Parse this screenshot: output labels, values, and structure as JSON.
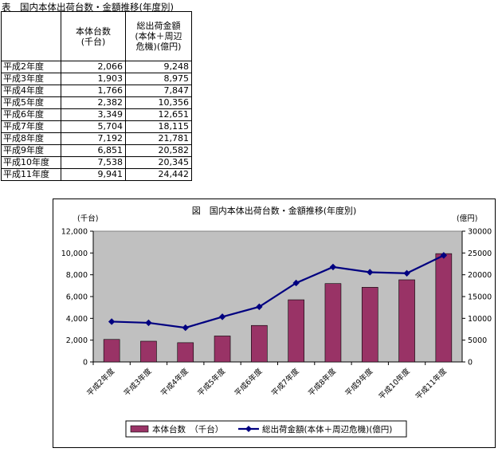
{
  "table": {
    "title": "表　国内本体出荷台数・金額推移(年度別)",
    "headers": [
      "",
      "本体台数\n(千台)",
      "総出荷金額\n(本体＋周辺\n危機)(億円)"
    ],
    "rows": [
      {
        "year": "平成2年度",
        "units": "2,066",
        "amount": "9,248"
      },
      {
        "year": "平成3年度",
        "units": "1,903",
        "amount": "8,975"
      },
      {
        "year": "平成4年度",
        "units": "1,766",
        "amount": "7,847"
      },
      {
        "year": "平成5年度",
        "units": "2,382",
        "amount": "10,356"
      },
      {
        "year": "平成6年度",
        "units": "3,349",
        "amount": "12,651"
      },
      {
        "year": "平成7年度",
        "units": "5,704",
        "amount": "18,115"
      },
      {
        "year": "平成8年度",
        "units": "7,192",
        "amount": "21,781"
      },
      {
        "year": "平成9年度",
        "units": "6,851",
        "amount": "20,582"
      },
      {
        "year": "平成10年度",
        "units": "7,538",
        "amount": "20,345"
      },
      {
        "year": "平成11年度",
        "units": "9,941",
        "amount": "24,442"
      }
    ]
  },
  "chart_data": {
    "type": "bar",
    "title": "図　国内本体出荷台数・金額推移(年度別)",
    "categories": [
      "平成2年度",
      "平成3年度",
      "平成4年度",
      "平成5年度",
      "平成6年度",
      "平成7年度",
      "平成8年度",
      "平成9年度",
      "平成10年度",
      "平成11年度"
    ],
    "left_axis_unit": "(千台)",
    "right_axis_unit": "(億円)",
    "ylim": [
      0,
      12000
    ],
    "y_ticks": [
      "0",
      "2,000",
      "4,000",
      "6,000",
      "8,000",
      "10,000",
      "12,000"
    ],
    "y2lim": [
      0,
      30000
    ],
    "y2_ticks": [
      "0",
      "5000",
      "10000",
      "15000",
      "20000",
      "25000",
      "30000"
    ],
    "series": [
      {
        "name": "本体台数　（千台）",
        "kind": "bar",
        "axis": "left",
        "color": "#993366",
        "values": [
          2066,
          1903,
          1766,
          2382,
          3349,
          5704,
          7192,
          6851,
          7538,
          9941
        ]
      },
      {
        "name": "総出荷金額(本体＋周辺危機)(億円)",
        "kind": "line",
        "axis": "right",
        "color": "#000080",
        "values": [
          9248,
          8975,
          7847,
          10356,
          12651,
          18115,
          21781,
          20582,
          20345,
          24442
        ]
      }
    ],
    "plot_background": "#c0c0c0",
    "grid": false,
    "legend_position": "bottom"
  }
}
